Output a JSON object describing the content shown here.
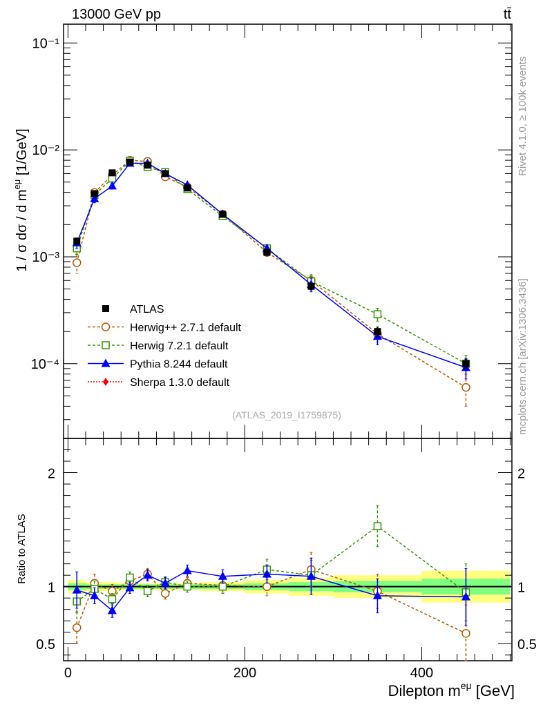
{
  "header": {
    "left": "13000 GeV pp",
    "right": "tt̄"
  },
  "side": {
    "top": "Rivet 4.1.0, ≥ 100k events",
    "bottom": "mcplots.cern.ch [arXiv:1306.3436]"
  },
  "analysis_label": "(ATLAS_2019_I1759875)",
  "colors": {
    "atlas": "#000000",
    "herwigpp": "#b35900",
    "herwig7": "#339900",
    "pythia": "#0000ff",
    "sherpa": "#ff0000",
    "band_yellow": "#ffff80",
    "band_green": "#80ff80"
  },
  "chart_data": [
    {
      "type": "scatter",
      "title": "13000 GeV pp",
      "ylabel": "1 / σ  dσ / d m^{eμ} [1/GeV]",
      "yscale": "log",
      "ylim": [
        2e-05,
        0.15
      ],
      "xlim": [
        -5,
        502
      ],
      "ytick_labels": [
        "10⁻¹",
        "10⁻²",
        "10⁻³",
        "10⁻⁴"
      ],
      "ytick_values": [
        0.1,
        0.01,
        0.001,
        0.0001
      ],
      "legend": [
        "ATLAS",
        "Herwig++ 2.7.1 default",
        "Herwig 7.2.1 default",
        "Pythia 8.244 default",
        "Sherpa 1.3.0 default"
      ],
      "x": [
        10,
        30,
        50,
        70,
        90,
        110,
        135,
        175,
        225,
        275,
        350,
        450
      ],
      "bin_edges": [
        0,
        20,
        40,
        60,
        80,
        100,
        120,
        150,
        200,
        250,
        300,
        400,
        500
      ],
      "series": [
        {
          "name": "ATLAS",
          "values": [
            0.0014,
            0.0039,
            0.0061,
            0.0077,
            0.0072,
            0.006,
            0.0044,
            0.0025,
            0.0011,
            0.00053,
            0.0002,
            0.0001
          ],
          "errors": [
            0.0001,
            0.0002,
            0.0003,
            0.0003,
            0.0003,
            0.0003,
            0.0002,
            0.0001,
            6e-05,
            4e-05,
            2e-05,
            1e-05
          ]
        },
        {
          "name": "Herwig++ 2.7.1 default",
          "values": [
            0.00088,
            0.004,
            0.0058,
            0.008,
            0.0078,
            0.0056,
            0.0045,
            0.0025,
            0.0011,
            0.0006,
            0.00019,
            6e-05
          ],
          "errors": [
            0.00018,
            0.0003,
            0.0003,
            0.0003,
            0.0003,
            0.0003,
            0.0002,
            0.00015,
            9e-05,
            8e-05,
            3e-05,
            2e-05
          ]
        },
        {
          "name": "Herwig 7.2.1 default",
          "values": [
            0.0012,
            0.0038,
            0.0054,
            0.0079,
            0.0069,
            0.0062,
            0.0043,
            0.0024,
            0.0012,
            0.00059,
            0.00029,
            0.0001
          ],
          "errors": [
            0.00015,
            0.0003,
            0.0003,
            0.0003,
            0.0003,
            0.0003,
            0.0002,
            0.00015,
            9e-05,
            8e-05,
            4e-05,
            2e-05
          ]
        },
        {
          "name": "Pythia 8.244 default",
          "values": [
            0.00135,
            0.0035,
            0.0046,
            0.0075,
            0.0075,
            0.006,
            0.0047,
            0.0025,
            0.0012,
            0.00055,
            0.00018,
            9.2e-05
          ],
          "errors": [
            0.00015,
            0.0003,
            0.0003,
            0.0003,
            0.0003,
            0.0003,
            0.0002,
            0.00015,
            9e-05,
            8e-05,
            3e-05,
            2e-05
          ]
        },
        {
          "name": "Sherpa 1.3.0 default",
          "values": [],
          "errors": []
        }
      ]
    },
    {
      "type": "scatter",
      "xlabel": "Dilepton m^{eμ} [GeV]",
      "ylabel": "Ratio to ATLAS",
      "ylim": [
        0.35,
        2.3
      ],
      "xlim": [
        -5,
        502
      ],
      "xtick_values": [
        0,
        200,
        400
      ],
      "xtick_labels": [
        "0",
        "200",
        "400"
      ],
      "ytick_values": [
        0.5,
        1,
        2
      ],
      "ytick_labels": [
        "0.5",
        "1",
        "2"
      ],
      "x": [
        10,
        30,
        50,
        70,
        90,
        110,
        135,
        175,
        225,
        275,
        350,
        450
      ],
      "bin_edges": [
        0,
        20,
        40,
        60,
        80,
        100,
        120,
        150,
        200,
        250,
        300,
        400,
        500
      ],
      "band_inner": [
        0.03,
        0.02,
        0.02,
        0.02,
        0.02,
        0.02,
        0.02,
        0.02,
        0.03,
        0.04,
        0.05,
        0.07
      ],
      "band_outer": [
        0.06,
        0.04,
        0.04,
        0.03,
        0.03,
        0.03,
        0.03,
        0.04,
        0.06,
        0.08,
        0.1,
        0.14
      ],
      "series": [
        {
          "name": "Herwig++ 2.7.1 default",
          "values": [
            0.64,
            1.03,
            0.96,
            1.05,
            1.11,
            0.94,
            1.03,
            1.01,
            1.0,
            1.15,
            0.96,
            0.59
          ],
          "errors": [
            0.14,
            0.08,
            0.06,
            0.05,
            0.05,
            0.05,
            0.05,
            0.06,
            0.08,
            0.15,
            0.15,
            0.25
          ]
        },
        {
          "name": "Herwig 7.2.1 default",
          "values": [
            0.87,
            0.98,
            0.89,
            1.08,
            0.96,
            1.04,
            1.0,
            1.0,
            1.15,
            1.1,
            1.53,
            0.95
          ],
          "errors": [
            0.1,
            0.07,
            0.05,
            0.05,
            0.05,
            0.05,
            0.05,
            0.06,
            0.09,
            0.13,
            0.18,
            0.25
          ]
        },
        {
          "name": "Pythia 8.244 default",
          "values": [
            0.97,
            0.92,
            0.79,
            0.99,
            1.1,
            1.03,
            1.14,
            1.09,
            1.11,
            1.09,
            0.92,
            0.91
          ],
          "errors": [
            0.16,
            0.07,
            0.06,
            0.05,
            0.05,
            0.05,
            0.05,
            0.06,
            0.08,
            0.16,
            0.15,
            0.25
          ]
        }
      ]
    }
  ]
}
